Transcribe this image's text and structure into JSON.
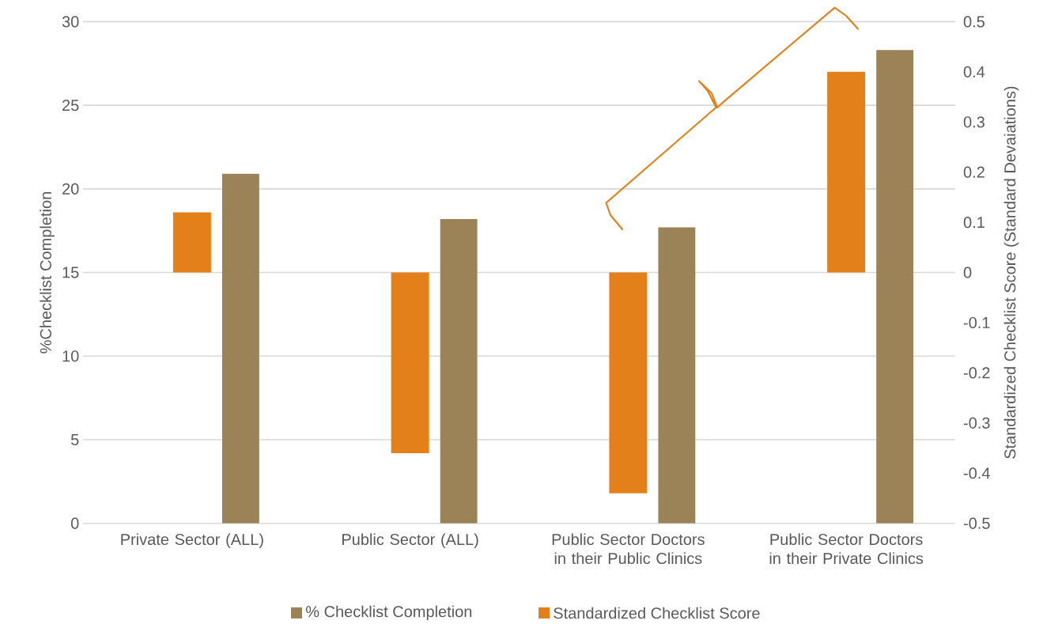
{
  "chart_data": {
    "type": "bar",
    "xlabel": null,
    "ylabel": "%Checklist Completion",
    "y2label": "Standardized Checklist Score (Standard Devaiations)",
    "categories": [
      "Private Sector (ALL)",
      "Public Sector (ALL)",
      "Public Sector Doctors in their Public Clinics",
      "Public Sector Doctors in their Private Clinics"
    ],
    "series": [
      {
        "name": "Standardized Checklist Score",
        "color": "#e3801a",
        "axis": "y2",
        "values": [
          0.12,
          -0.36,
          -0.44,
          0.4
        ]
      },
      {
        "name": "% Checklist Completion",
        "color": "#9c8357",
        "values": [
          20.9,
          18.2,
          17.7,
          28.3
        ]
      }
    ],
    "ylim": [
      0,
      30
    ],
    "yticks": [
      0,
      5,
      10,
      15,
      20,
      25,
      30
    ],
    "y2lim": [
      -0.5,
      0.5
    ],
    "y2ticks": [
      -0.5,
      -0.4,
      -0.3,
      -0.2,
      -0.1,
      0,
      0.1,
      0.2,
      0.3,
      0.4,
      0.5
    ],
    "grid": "y",
    "legend": "bottom"
  }
}
